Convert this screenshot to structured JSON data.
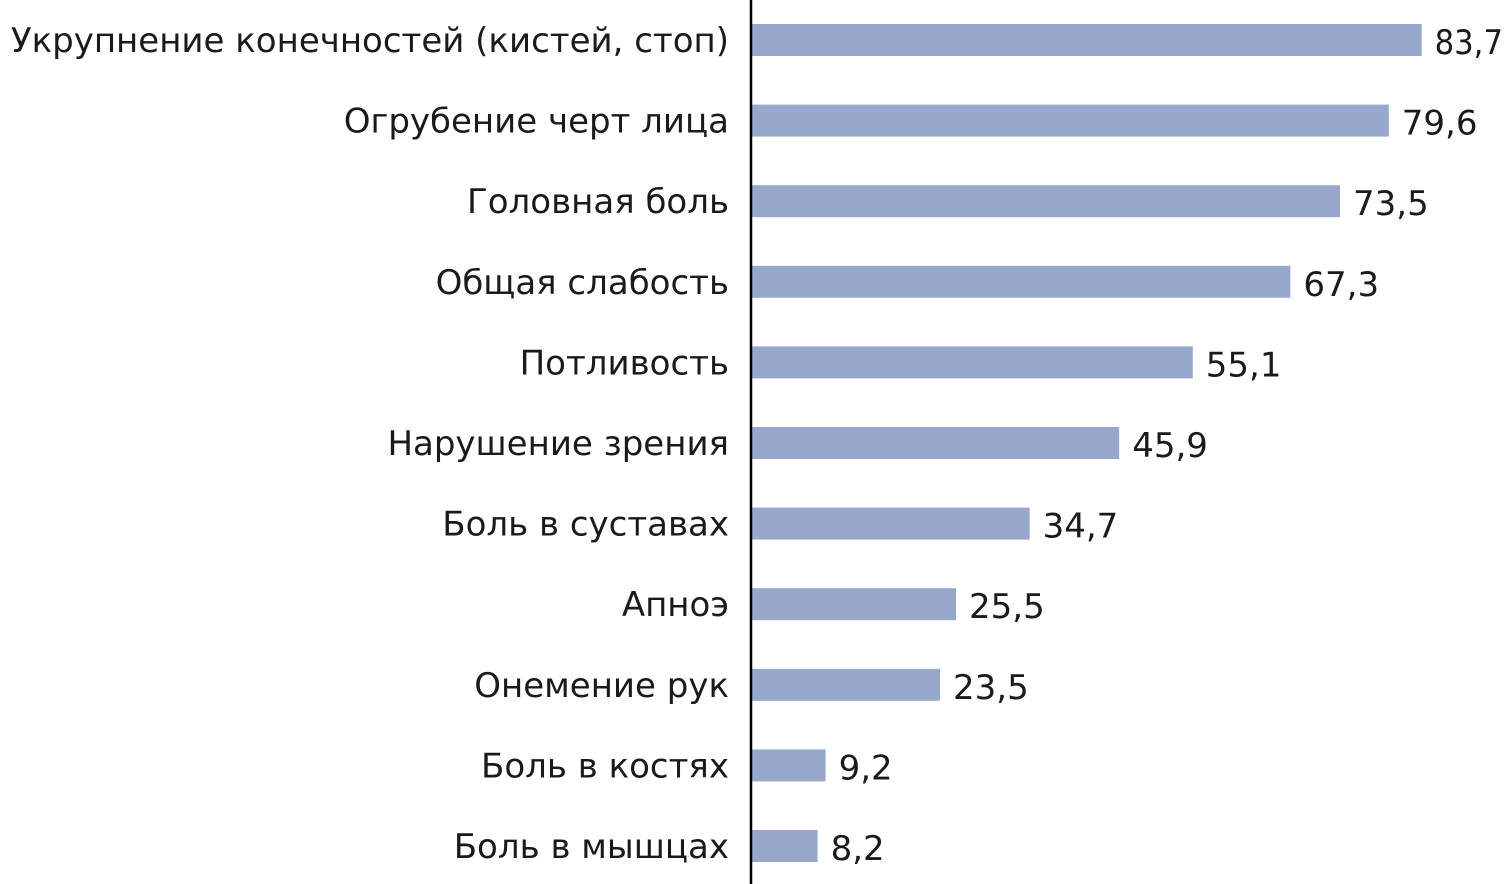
{
  "chart_data": {
    "type": "bar",
    "orientation": "horizontal",
    "categories": [
      "Укрупнение конечностей (кистей, стоп)",
      "Огрубение черт лица",
      "Головная боль",
      "Общая слабость",
      "Потливость",
      "Нарушение зрения",
      "Боль в суставах",
      "Апноэ",
      "Онемение рук",
      "Боль в костях",
      "Боль в мышцах"
    ],
    "values": [
      83.7,
      79.6,
      73.5,
      67.3,
      55.1,
      45.9,
      34.7,
      25.5,
      23.5,
      9.2,
      8.2
    ],
    "value_labels": [
      "83,7",
      "79,6",
      "73,5",
      "67,3",
      "55,1",
      "45,9",
      "34,7",
      "25,5",
      "23,5",
      "9,2",
      "8,2"
    ],
    "title": "",
    "xlabel": "",
    "ylabel": "",
    "xlim": [
      0,
      90
    ],
    "grid": false,
    "legend": "none",
    "bar_color": "#98a8cc",
    "axis_color": "#000000"
  }
}
